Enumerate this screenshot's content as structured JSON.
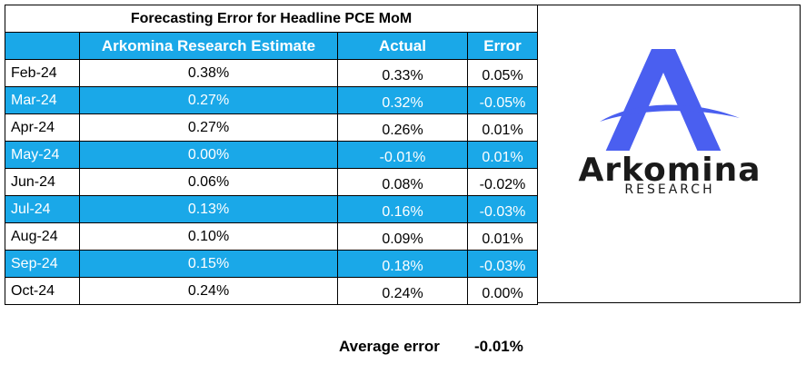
{
  "table": {
    "title": "Forecasting Error for Headline PCE MoM",
    "headers": {
      "month": "",
      "estimate": "Arkomina Research Estimate",
      "actual": "Actual",
      "error": "Error"
    },
    "rows": [
      {
        "month": "Feb-24",
        "estimate": "0.38%",
        "actual": "0.33%",
        "error": "0.05%"
      },
      {
        "month": "Mar-24",
        "estimate": "0.27%",
        "actual": "0.32%",
        "error": "-0.05%"
      },
      {
        "month": "Apr-24",
        "estimate": "0.27%",
        "actual": "0.26%",
        "error": "0.01%"
      },
      {
        "month": "May-24",
        "estimate": "0.00%",
        "actual": "-0.01%",
        "error": "0.01%"
      },
      {
        "month": "Jun-24",
        "estimate": "0.06%",
        "actual": "0.08%",
        "error": "-0.02%"
      },
      {
        "month": "Jul-24",
        "estimate": "0.13%",
        "actual": "0.16%",
        "error": "-0.03%"
      },
      {
        "month": "Aug-24",
        "estimate": "0.10%",
        "actual": "0.09%",
        "error": "0.01%"
      },
      {
        "month": "Sep-24",
        "estimate": "0.15%",
        "actual": "0.18%",
        "error": "-0.03%"
      },
      {
        "month": "Oct-24",
        "estimate": "0.24%",
        "actual": "0.24%",
        "error": "0.00%"
      }
    ]
  },
  "logo": {
    "name": "Arkomina",
    "subtitle": "RESEARCH",
    "brand_color": "#4a5ff0"
  },
  "summary": {
    "label": "Average error",
    "value": "-0.01%"
  },
  "colors": {
    "header_fill": "#1aa8e8",
    "alt_row_fill": "#1aa8e8",
    "alt_row_text": "#ffffff"
  }
}
